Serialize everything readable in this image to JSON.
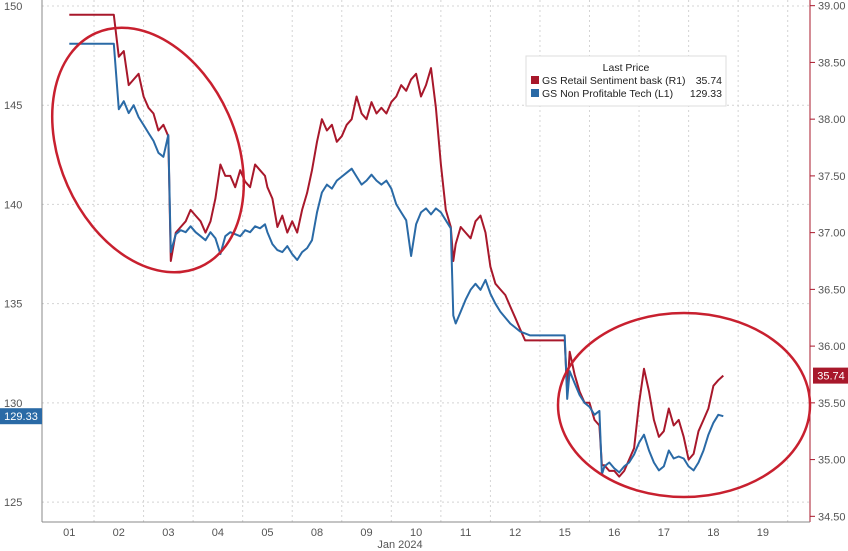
{
  "chart_data": {
    "type": "line",
    "title": "",
    "xlabel": "Jan 2024",
    "x_ticks": [
      "01",
      "02",
      "03",
      "04",
      "05",
      "08",
      "09",
      "10",
      "11",
      "12",
      "15",
      "16",
      "17",
      "18",
      "19"
    ],
    "left_axis": {
      "ticks": [
        125,
        130,
        135,
        140,
        145,
        150
      ],
      "ylim": [
        124,
        150.3
      ]
    },
    "right_axis": {
      "ticks": [
        "34.50",
        "35.00",
        "35.50",
        "36.00",
        "36.50",
        "37.00",
        "37.50",
        "38.00",
        "38.50",
        "39.00"
      ],
      "ylim": [
        34.45,
        39.05
      ]
    },
    "grid": true,
    "legend": {
      "title": "Last Price",
      "placement": "top-right",
      "entries": [
        {
          "label": "GS Retail Sentiment bask",
          "axis": "(R1)",
          "value": "35.74",
          "color": "#a8182b"
        },
        {
          "label": "GS Non Profitable Tech",
          "axis": "(L1)",
          "value": "129.33",
          "color": "#2a6aa6"
        }
      ]
    },
    "series": [
      {
        "name": "GS Retail Sentiment bask",
        "axis": "right",
        "color": "#a8182b",
        "last_label": "35.74",
        "points": [
          [
            0.0,
            38.92
          ],
          [
            0.5,
            38.92
          ],
          [
            0.9,
            38.92
          ],
          [
            1.0,
            38.55
          ],
          [
            1.1,
            38.6
          ],
          [
            1.2,
            38.3
          ],
          [
            1.3,
            38.35
          ],
          [
            1.4,
            38.4
          ],
          [
            1.5,
            38.2
          ],
          [
            1.6,
            38.1
          ],
          [
            1.7,
            38.05
          ],
          [
            1.8,
            37.9
          ],
          [
            1.9,
            37.95
          ],
          [
            2.0,
            37.85
          ],
          [
            2.05,
            36.75
          ],
          [
            2.15,
            37.0
          ],
          [
            2.25,
            37.05
          ],
          [
            2.35,
            37.1
          ],
          [
            2.45,
            37.2
          ],
          [
            2.55,
            37.15
          ],
          [
            2.65,
            37.1
          ],
          [
            2.75,
            37.0
          ],
          [
            2.85,
            37.1
          ],
          [
            2.95,
            37.3
          ],
          [
            3.05,
            37.6
          ],
          [
            3.15,
            37.5
          ],
          [
            3.25,
            37.5
          ],
          [
            3.35,
            37.4
          ],
          [
            3.45,
            37.55
          ],
          [
            3.55,
            37.45
          ],
          [
            3.65,
            37.4
          ],
          [
            3.75,
            37.6
          ],
          [
            3.85,
            37.55
          ],
          [
            3.95,
            37.5
          ],
          [
            4.0,
            37.4
          ],
          [
            4.1,
            37.3
          ],
          [
            4.2,
            37.05
          ],
          [
            4.3,
            37.15
          ],
          [
            4.4,
            37.0
          ],
          [
            4.5,
            37.1
          ],
          [
            4.6,
            37.0
          ],
          [
            4.7,
            37.2
          ],
          [
            4.8,
            37.35
          ],
          [
            4.9,
            37.55
          ],
          [
            5.0,
            37.8
          ],
          [
            5.1,
            38.0
          ],
          [
            5.2,
            37.9
          ],
          [
            5.3,
            37.95
          ],
          [
            5.4,
            37.8
          ],
          [
            5.5,
            37.85
          ],
          [
            5.6,
            37.95
          ],
          [
            5.7,
            38.0
          ],
          [
            5.8,
            38.2
          ],
          [
            5.9,
            38.05
          ],
          [
            6.0,
            38.0
          ],
          [
            6.1,
            38.15
          ],
          [
            6.2,
            38.05
          ],
          [
            6.3,
            38.1
          ],
          [
            6.4,
            38.05
          ],
          [
            6.5,
            38.15
          ],
          [
            6.6,
            38.2
          ],
          [
            6.7,
            38.3
          ],
          [
            6.8,
            38.25
          ],
          [
            6.9,
            38.35
          ],
          [
            7.0,
            38.4
          ],
          [
            7.1,
            38.2
          ],
          [
            7.2,
            38.3
          ],
          [
            7.3,
            38.45
          ],
          [
            7.4,
            38.1
          ],
          [
            7.5,
            37.6
          ],
          [
            7.6,
            37.2
          ],
          [
            7.7,
            37.05
          ],
          [
            7.75,
            36.75
          ],
          [
            7.8,
            36.9
          ],
          [
            7.9,
            37.05
          ],
          [
            8.0,
            37.0
          ],
          [
            8.1,
            36.95
          ],
          [
            8.2,
            37.1
          ],
          [
            8.3,
            37.15
          ],
          [
            8.4,
            37.0
          ],
          [
            8.5,
            36.7
          ],
          [
            8.6,
            36.55
          ],
          [
            8.7,
            36.5
          ],
          [
            8.8,
            36.45
          ],
          [
            8.9,
            36.35
          ],
          [
            9.0,
            36.25
          ],
          [
            9.1,
            36.15
          ],
          [
            9.2,
            36.05
          ],
          [
            9.3,
            36.05
          ],
          [
            9.5,
            36.05
          ],
          [
            9.7,
            36.05
          ],
          [
            9.9,
            36.05
          ],
          [
            10.0,
            36.05
          ],
          [
            10.05,
            35.6
          ],
          [
            10.1,
            35.95
          ],
          [
            10.2,
            35.75
          ],
          [
            10.3,
            35.6
          ],
          [
            10.4,
            35.5
          ],
          [
            10.5,
            35.5
          ],
          [
            10.6,
            35.35
          ],
          [
            10.7,
            35.3
          ],
          [
            10.75,
            34.95
          ],
          [
            10.8,
            34.95
          ],
          [
            10.9,
            34.9
          ],
          [
            11.0,
            34.9
          ],
          [
            11.1,
            34.85
          ],
          [
            11.2,
            34.9
          ],
          [
            11.3,
            35.0
          ],
          [
            11.4,
            35.1
          ],
          [
            11.5,
            35.5
          ],
          [
            11.6,
            35.8
          ],
          [
            11.7,
            35.6
          ],
          [
            11.8,
            35.35
          ],
          [
            11.9,
            35.2
          ],
          [
            12.0,
            35.25
          ],
          [
            12.1,
            35.45
          ],
          [
            12.2,
            35.3
          ],
          [
            12.3,
            35.35
          ],
          [
            12.4,
            35.2
          ],
          [
            12.5,
            35.0
          ],
          [
            12.6,
            35.05
          ],
          [
            12.7,
            35.25
          ],
          [
            12.8,
            35.35
          ],
          [
            12.9,
            35.45
          ],
          [
            13.0,
            35.65
          ],
          [
            13.1,
            35.7
          ],
          [
            13.2,
            35.74
          ]
        ]
      },
      {
        "name": "GS Non Profitable Tech",
        "axis": "left",
        "color": "#2a6aa6",
        "last_label": "129.33",
        "points": [
          [
            0.0,
            148.1
          ],
          [
            0.5,
            148.1
          ],
          [
            0.9,
            148.1
          ],
          [
            1.0,
            144.8
          ],
          [
            1.1,
            145.2
          ],
          [
            1.2,
            144.6
          ],
          [
            1.3,
            145.0
          ],
          [
            1.4,
            144.4
          ],
          [
            1.5,
            144.0
          ],
          [
            1.6,
            143.6
          ],
          [
            1.7,
            143.2
          ],
          [
            1.8,
            142.6
          ],
          [
            1.9,
            142.4
          ],
          [
            2.0,
            143.5
          ],
          [
            2.05,
            137.6
          ],
          [
            2.15,
            138.5
          ],
          [
            2.25,
            138.7
          ],
          [
            2.35,
            138.6
          ],
          [
            2.45,
            138.9
          ],
          [
            2.55,
            138.6
          ],
          [
            2.65,
            138.4
          ],
          [
            2.75,
            138.2
          ],
          [
            2.85,
            138.6
          ],
          [
            2.95,
            138.3
          ],
          [
            3.05,
            137.5
          ],
          [
            3.15,
            138.4
          ],
          [
            3.25,
            138.6
          ],
          [
            3.35,
            138.5
          ],
          [
            3.45,
            138.4
          ],
          [
            3.55,
            138.7
          ],
          [
            3.65,
            138.6
          ],
          [
            3.75,
            138.9
          ],
          [
            3.85,
            138.8
          ],
          [
            3.95,
            139.0
          ],
          [
            4.0,
            138.6
          ],
          [
            4.1,
            138.0
          ],
          [
            4.2,
            137.7
          ],
          [
            4.3,
            137.6
          ],
          [
            4.4,
            137.9
          ],
          [
            4.5,
            137.5
          ],
          [
            4.6,
            137.2
          ],
          [
            4.7,
            137.6
          ],
          [
            4.8,
            137.8
          ],
          [
            4.9,
            138.2
          ],
          [
            5.0,
            139.6
          ],
          [
            5.1,
            140.6
          ],
          [
            5.2,
            141.0
          ],
          [
            5.3,
            140.8
          ],
          [
            5.4,
            141.2
          ],
          [
            5.5,
            141.4
          ],
          [
            5.6,
            141.6
          ],
          [
            5.7,
            141.8
          ],
          [
            5.8,
            141.4
          ],
          [
            5.9,
            141.0
          ],
          [
            6.0,
            141.2
          ],
          [
            6.1,
            141.5
          ],
          [
            6.2,
            141.2
          ],
          [
            6.3,
            141.0
          ],
          [
            6.4,
            141.2
          ],
          [
            6.5,
            140.8
          ],
          [
            6.6,
            140.0
          ],
          [
            6.7,
            139.6
          ],
          [
            6.8,
            139.2
          ],
          [
            6.9,
            137.4
          ],
          [
            7.0,
            139.0
          ],
          [
            7.1,
            139.6
          ],
          [
            7.2,
            139.8
          ],
          [
            7.3,
            139.5
          ],
          [
            7.4,
            139.8
          ],
          [
            7.5,
            139.6
          ],
          [
            7.6,
            139.2
          ],
          [
            7.7,
            138.8
          ],
          [
            7.75,
            134.4
          ],
          [
            7.8,
            134.0
          ],
          [
            7.9,
            134.6
          ],
          [
            8.0,
            135.2
          ],
          [
            8.1,
            135.7
          ],
          [
            8.2,
            136.0
          ],
          [
            8.3,
            135.7
          ],
          [
            8.4,
            136.2
          ],
          [
            8.5,
            135.5
          ],
          [
            8.6,
            135.0
          ],
          [
            8.7,
            134.6
          ],
          [
            8.8,
            134.3
          ],
          [
            8.9,
            134.0
          ],
          [
            9.0,
            133.8
          ],
          [
            9.1,
            133.6
          ],
          [
            9.2,
            133.5
          ],
          [
            9.3,
            133.4
          ],
          [
            9.5,
            133.4
          ],
          [
            9.7,
            133.4
          ],
          [
            9.9,
            133.4
          ],
          [
            10.0,
            133.4
          ],
          [
            10.05,
            130.2
          ],
          [
            10.1,
            131.6
          ],
          [
            10.2,
            131.0
          ],
          [
            10.3,
            130.4
          ],
          [
            10.4,
            130.0
          ],
          [
            10.5,
            129.8
          ],
          [
            10.6,
            129.4
          ],
          [
            10.7,
            129.6
          ],
          [
            10.75,
            126.4
          ],
          [
            10.8,
            126.8
          ],
          [
            10.9,
            127.0
          ],
          [
            11.0,
            126.7
          ],
          [
            11.1,
            126.5
          ],
          [
            11.2,
            126.8
          ],
          [
            11.3,
            127.0
          ],
          [
            11.4,
            127.4
          ],
          [
            11.5,
            128.0
          ],
          [
            11.6,
            128.4
          ],
          [
            11.7,
            127.6
          ],
          [
            11.8,
            127.0
          ],
          [
            11.9,
            126.6
          ],
          [
            12.0,
            126.8
          ],
          [
            12.1,
            127.6
          ],
          [
            12.2,
            127.2
          ],
          [
            12.3,
            127.3
          ],
          [
            12.4,
            127.2
          ],
          [
            12.5,
            126.8
          ],
          [
            12.6,
            126.6
          ],
          [
            12.7,
            127.0
          ],
          [
            12.8,
            127.6
          ],
          [
            12.9,
            128.4
          ],
          [
            13.0,
            129.0
          ],
          [
            13.1,
            129.4
          ],
          [
            13.2,
            129.33
          ]
        ]
      }
    ]
  }
}
